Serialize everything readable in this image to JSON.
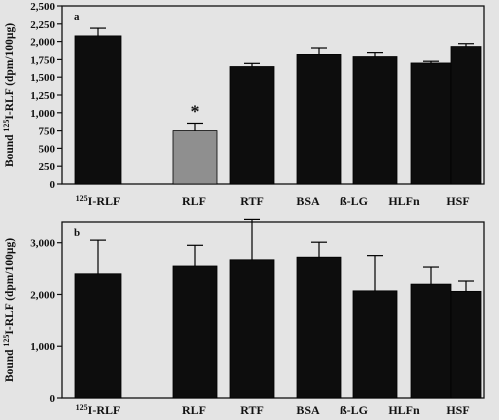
{
  "chart_data": [
    {
      "type": "bar",
      "panel_label": "a",
      "ylabel_prefix": "Bound ",
      "ylabel_sup": "125",
      "ylabel_suffix": "I-RLF (dpm/100µg)",
      "ylim": [
        0,
        2500
      ],
      "yticks": [
        0,
        250,
        500,
        750,
        1000,
        1250,
        1500,
        1750,
        2000,
        2250,
        2500
      ],
      "ytick_labels": [
        "0",
        "250",
        "500",
        "750",
        "1,000",
        "1,250",
        "1,500",
        "1,750",
        "2,000",
        "2,250",
        "2,500"
      ],
      "categories": [
        "RLF",
        "RTF",
        "BSA",
        "ß-LG",
        "HLFn",
        "HSF"
      ],
      "reference_bar": {
        "label_sup": "125",
        "label_rest": "I-RLF",
        "value": 2080,
        "error": 110
      },
      "values": [
        750,
        1650,
        1820,
        1790,
        1700,
        1930
      ],
      "errors": [
        100,
        45,
        90,
        55,
        25,
        40
      ],
      "bar_colors": [
        "#8f8f8f",
        "#0d0d0d",
        "#0d0d0d",
        "#0d0d0d",
        "#0d0d0d",
        "#0d0d0d"
      ],
      "reference_color": "#0d0d0d",
      "annotations": [
        {
          "text": "*",
          "category": "RLF"
        }
      ],
      "grid": false
    },
    {
      "type": "bar",
      "panel_label": "b",
      "ylabel_prefix": "Bound ",
      "ylabel_sup": "125",
      "ylabel_suffix": "I-RLF (dpm/100µg)",
      "ylim": [
        0,
        3400
      ],
      "yticks": [
        0,
        1000,
        2000,
        3000
      ],
      "ytick_labels": [
        "0",
        "1,000",
        "2,000",
        "3,000"
      ],
      "categories": [
        "RLF",
        "RTF",
        "BSA",
        "ß-LG",
        "HLFn",
        "HSF"
      ],
      "reference_bar": {
        "label_sup": "125",
        "label_rest": "I-RLF",
        "value": 2400,
        "error": 650
      },
      "values": [
        2550,
        2670,
        2720,
        2070,
        2200,
        2060
      ],
      "errors": [
        400,
        780,
        290,
        680,
        330,
        200
      ],
      "bar_colors": [
        "#0d0d0d",
        "#0d0d0d",
        "#0d0d0d",
        "#0d0d0d",
        "#0d0d0d",
        "#0d0d0d"
      ],
      "reference_color": "#0d0d0d",
      "annotations": [],
      "grid": false
    }
  ]
}
